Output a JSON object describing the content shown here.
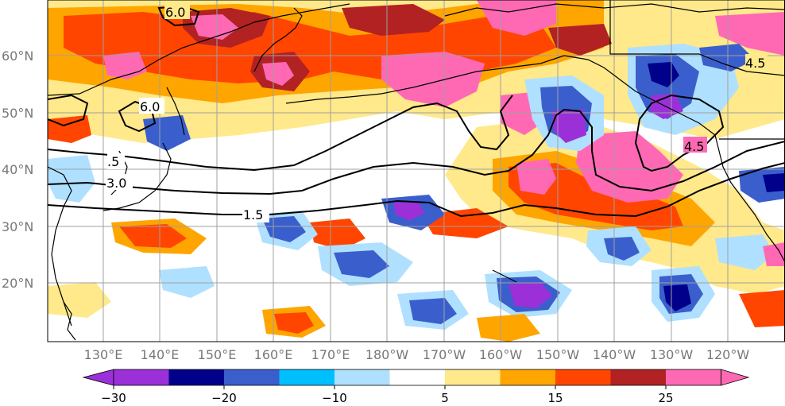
{
  "map": {
    "lat_labels": [
      "60°N",
      "50°N",
      "40°N",
      "30°N",
      "20°N"
    ],
    "lon_labels": [
      "130°E",
      "140°E",
      "150°E",
      "160°E",
      "170°E",
      "180°W",
      "170°W",
      "160°W",
      "150°W",
      "140°W",
      "130°W",
      "120°W"
    ],
    "contour_labels": [
      "6.0",
      "6.0",
      "4.5",
      "4.5",
      "3.0",
      "1.5",
      ".5"
    ],
    "contour_color": "#000000",
    "gridline_color": "#a0a0a0",
    "coastline_color": "#000000"
  },
  "colorbar": {
    "colors": [
      "#9b30d9",
      "#00008b",
      "#3a5fcd",
      "#00bfff",
      "#b0e0ff",
      "#ffffff",
      "#ffe98a",
      "#ffa500",
      "#ff4500",
      "#b22222",
      "#ff69b4"
    ],
    "tick_labels": [
      "−30",
      "−20",
      "−10",
      "5",
      "15",
      "25"
    ]
  }
}
